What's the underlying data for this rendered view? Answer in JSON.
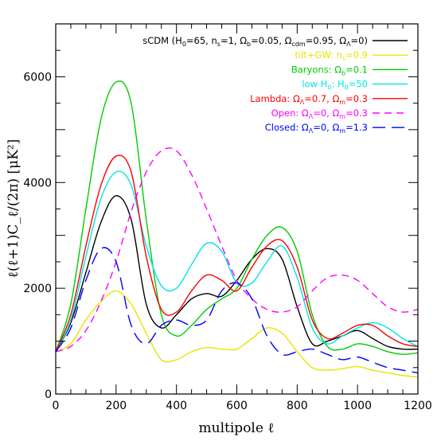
{
  "chart_data": {
    "type": "line",
    "xlabel": "multipole ℓ",
    "ylabel": "ℓ(ℓ+1)C_ℓ/(2π) [μK²]",
    "xlim": [
      0,
      1200
    ],
    "ylim": [
      0,
      7000
    ],
    "x_ticks": [
      0,
      200,
      400,
      600,
      800,
      1000,
      1200
    ],
    "y_ticks": [
      0,
      2000,
      4000,
      6000
    ],
    "grid": false,
    "legend_position": "top-right",
    "series": [
      {
        "name": "sCDM (H0=65, ns=1, Ωb=0.05, Ωcdm=0.95, ΩΛ=0)",
        "legend_parts": [
          [
            "sCDM (H",
            ""
          ],
          [
            "0",
            "sub"
          ],
          [
            "=65, n",
            ""
          ],
          [
            "s",
            "sub"
          ],
          [
            "=1, Ω",
            ""
          ],
          [
            "b",
            "sub"
          ],
          [
            "=0.05, Ω",
            ""
          ],
          [
            "cdm",
            "sub"
          ],
          [
            "=0.95, Ω",
            ""
          ],
          [
            "Λ",
            "sub"
          ],
          [
            "=0)",
            ""
          ]
        ],
        "color": "#000000",
        "dash": "solid",
        "x": [
          0,
          50,
          100,
          150,
          200,
          250,
          300,
          350,
          400,
          450,
          500,
          550,
          600,
          650,
          700,
          750,
          800,
          850,
          900,
          950,
          1000,
          1050,
          1100,
          1150,
          1200
        ],
        "y": [
          800,
          1350,
          2300,
          3250,
          3750,
          3300,
          1700,
          1250,
          1500,
          1800,
          1900,
          1850,
          2150,
          2550,
          2750,
          2550,
          1650,
          950,
          1000,
          1100,
          1200,
          1050,
          900,
          850,
          850
        ]
      },
      {
        "name": "tilt+GW: ns=0.9",
        "legend_parts": [
          [
            "tilt+GW: n",
            ""
          ],
          [
            "s",
            "sub"
          ],
          [
            "=0.9",
            ""
          ]
        ],
        "color": "#e6e600",
        "dash": "solid",
        "x": [
          0,
          50,
          100,
          150,
          200,
          250,
          300,
          350,
          400,
          450,
          500,
          550,
          600,
          650,
          700,
          750,
          800,
          850,
          900,
          950,
          1000,
          1050,
          1100,
          1150,
          1200
        ],
        "y": [
          800,
          950,
          1400,
          1750,
          1950,
          1700,
          1150,
          650,
          650,
          800,
          880,
          850,
          850,
          1050,
          1250,
          1150,
          800,
          500,
          450,
          480,
          520,
          450,
          400,
          350,
          320
        ]
      },
      {
        "name": "Baryons: Ωb=0.1",
        "legend_parts": [
          [
            "Baryons: Ω",
            ""
          ],
          [
            "b",
            "sub"
          ],
          [
            "=0.1",
            ""
          ]
        ],
        "color": "#00cc00",
        "dash": "solid",
        "x": [
          0,
          50,
          100,
          150,
          200,
          250,
          300,
          350,
          400,
          450,
          500,
          550,
          600,
          650,
          700,
          750,
          800,
          850,
          900,
          950,
          1000,
          1050,
          1100,
          1150,
          1200
        ],
        "y": [
          800,
          1700,
          3500,
          5200,
          5900,
          5500,
          3300,
          1500,
          1100,
          1300,
          1600,
          1800,
          2000,
          2550,
          3000,
          3150,
          2700,
          1500,
          900,
          850,
          950,
          900,
          800,
          750,
          780
        ]
      },
      {
        "name": "low H0: H0=50",
        "legend_parts": [
          [
            "low H",
            ""
          ],
          [
            "0",
            "sub"
          ],
          [
            ": H",
            ""
          ],
          [
            "0",
            "sub"
          ],
          [
            "=50",
            ""
          ]
        ],
        "color": "#00e5e5",
        "dash": "solid",
        "x": [
          0,
          50,
          100,
          150,
          200,
          250,
          300,
          350,
          400,
          450,
          500,
          550,
          600,
          650,
          700,
          750,
          800,
          850,
          900,
          950,
          1000,
          1050,
          1100,
          1150,
          1200
        ],
        "y": [
          800,
          1400,
          2600,
          3700,
          4200,
          3950,
          2800,
          2050,
          2000,
          2450,
          2850,
          2700,
          2100,
          2100,
          2500,
          2800,
          2200,
          1250,
          950,
          1100,
          1250,
          1350,
          1250,
          1050,
          900
        ]
      },
      {
        "name": "Lambda: ΩΛ=0.7, Ωm=0.3",
        "legend_parts": [
          [
            "Lambda: Ω",
            ""
          ],
          [
            "Λ",
            "sub"
          ],
          [
            "=0.7, Ω",
            ""
          ],
          [
            "m",
            "sub"
          ],
          [
            "=0.3",
            ""
          ]
        ],
        "color": "#ff0000",
        "dash": "solid",
        "x": [
          0,
          50,
          100,
          150,
          200,
          250,
          300,
          350,
          400,
          450,
          500,
          550,
          600,
          650,
          700,
          750,
          800,
          850,
          900,
          950,
          1000,
          1050,
          1100,
          1150,
          1200
        ],
        "y": [
          800,
          1500,
          2800,
          3950,
          4500,
          4200,
          2600,
          1600,
          1550,
          1950,
          2250,
          2150,
          1950,
          2400,
          2800,
          2900,
          2400,
          1400,
          1050,
          1150,
          1300,
          1300,
          1100,
          950,
          900
        ]
      },
      {
        "name": "Open: ΩΛ=0, Ωm=0.3",
        "legend_parts": [
          [
            "Open: Ω",
            ""
          ],
          [
            "Λ",
            "sub"
          ],
          [
            "=0, Ω",
            ""
          ],
          [
            "m",
            "sub"
          ],
          [
            "=0.3",
            ""
          ]
        ],
        "color": "#ff00ff",
        "dash": "dash",
        "x": [
          0,
          50,
          100,
          150,
          200,
          250,
          300,
          350,
          400,
          450,
          500,
          550,
          600,
          650,
          700,
          750,
          800,
          850,
          900,
          950,
          1000,
          1050,
          1100,
          1150,
          1200
        ],
        "y": [
          800,
          900,
          1200,
          1750,
          2500,
          3450,
          4200,
          4600,
          4600,
          4150,
          3500,
          2800,
          2150,
          1800,
          1600,
          1550,
          1650,
          1950,
          2200,
          2250,
          2150,
          1900,
          1650,
          1550,
          1600
        ]
      },
      {
        "name": "Closed: ΩΛ=0, Ωm=1.3",
        "legend_parts": [
          [
            "Closed: Ω",
            ""
          ],
          [
            "Λ",
            "sub"
          ],
          [
            "=0, Ω",
            ""
          ],
          [
            "m",
            "sub"
          ],
          [
            "=1.3",
            ""
          ]
        ],
        "color": "#0000ff",
        "dash": "longdash",
        "x": [
          0,
          50,
          100,
          150,
          200,
          250,
          300,
          350,
          400,
          450,
          500,
          550,
          600,
          650,
          700,
          750,
          800,
          850,
          900,
          950,
          1000,
          1050,
          1100,
          1150,
          1200
        ],
        "y": [
          800,
          1250,
          2150,
          2750,
          2500,
          1300,
          950,
          1300,
          1400,
          1300,
          1400,
          1950,
          2100,
          1800,
          1100,
          750,
          800,
          850,
          750,
          650,
          700,
          600,
          500,
          450,
          400
        ]
      }
    ]
  }
}
